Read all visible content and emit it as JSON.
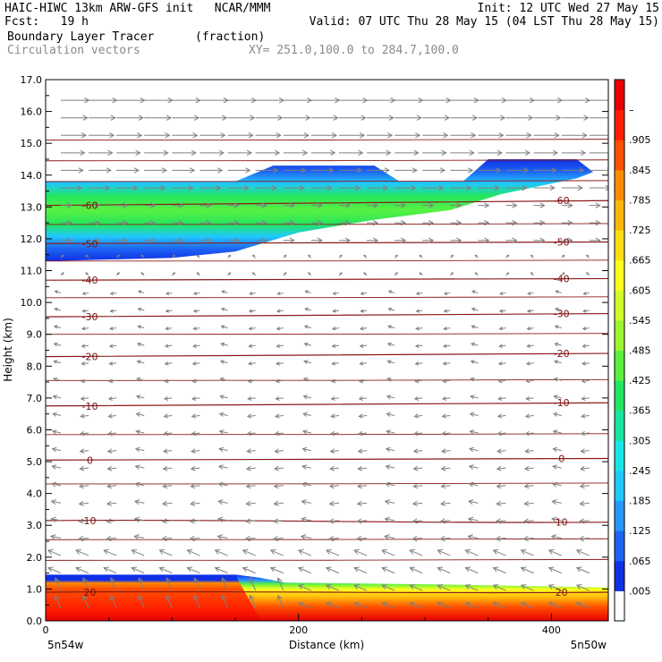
{
  "header": {
    "line1_left": "HAIC-HIWC 13km ARW-GFS init   NCAR/MMM",
    "line1_right": "Init: 12 UTC Wed 27 May 15",
    "line2_left": "Fcst:   19 h",
    "line2_right": "Valid: 07 UTC Thu 28 May 15 (04 LST Thu 28 May 15)",
    "line3_field": "Boundary Layer Tracer",
    "line3_units": "(fraction)",
    "line4_field": "Circulation vectors",
    "line4_xy": "XY= 251.0,100.0 to 284.7,100.0"
  },
  "colors": {
    "isotherm": "#8b1a1a",
    "vector": "#808080",
    "frame": "#000000"
  },
  "chart_data": {
    "type": "heatmap",
    "title": "Boundary Layer Tracer",
    "units": "(fraction)",
    "xlabel": "Distance (km)",
    "ylabel": "Height (km)",
    "xlim": [
      0,
      445
    ],
    "ylim": [
      0,
      17
    ],
    "x_ticks": [
      0,
      200,
      400
    ],
    "y_ticks": [
      "0.0",
      "1.0",
      "2.0",
      "3.0",
      "4.0",
      "5.0",
      "6.0",
      "7.0",
      "8.0",
      "9.0",
      "10.0",
      "11.0",
      "12.0",
      "13.0",
      "14.0",
      "15.0",
      "16.0",
      "17.0"
    ],
    "x_endpoint_labels": {
      "left": "5n54w",
      "right": "5n50w"
    },
    "colorbar": {
      "labels": [
        ".005",
        ".065",
        ".125",
        ".185",
        ".245",
        ".305",
        ".365",
        ".425",
        ".485",
        ".545",
        ".605",
        ".665",
        ".725",
        ".785",
        ".845",
        ".905",
        "–"
      ],
      "colors": [
        "#ffffff",
        "#1030e6",
        "#1e64f2",
        "#2896ff",
        "#20c8ff",
        "#18e6e6",
        "#18e6a0",
        "#22e660",
        "#5af040",
        "#9cf530",
        "#d2fa28",
        "#ffff1e",
        "#ffdc14",
        "#ffb40a",
        "#ff8c00",
        "#ff5000",
        "#ff1e00",
        "#e60000"
      ]
    },
    "isotherms": [
      {
        "label": "20",
        "left_z": 0.9,
        "right_z": 0.9
      },
      {
        "label": "10",
        "left_z": 3.15,
        "right_z": 3.1
      },
      {
        "label": "0",
        "left_z": 5.05,
        "right_z": 5.1
      },
      {
        "label": "-10",
        "left_z": 6.75,
        "right_z": 6.85
      },
      {
        "label": "-20",
        "left_z": 8.3,
        "right_z": 8.4
      },
      {
        "label": "-30",
        "left_z": 9.55,
        "right_z": 9.65
      },
      {
        "label": "-40",
        "left_z": 10.7,
        "right_z": 10.75
      },
      {
        "label": "-50",
        "left_z": 11.85,
        "right_z": 11.9
      },
      {
        "label": "-60",
        "left_z": 13.05,
        "right_z": 13.2
      }
    ],
    "upper_tracer_layer": {
      "description": "elevated plume",
      "top_km": [
        [
          0,
          13.8
        ],
        [
          150,
          13.8
        ],
        [
          180,
          14.3
        ],
        [
          260,
          14.3
        ],
        [
          280,
          13.8
        ],
        [
          330,
          13.8
        ],
        [
          350,
          14.5
        ],
        [
          420,
          14.5
        ],
        [
          433,
          14.1
        ]
      ],
      "bottom_km": [
        [
          0,
          11.3
        ],
        [
          100,
          11.4
        ],
        [
          150,
          11.6
        ],
        [
          200,
          12.2
        ],
        [
          260,
          12.6
        ],
        [
          320,
          12.9
        ],
        [
          360,
          13.4
        ],
        [
          420,
          13.9
        ],
        [
          433,
          14.1
        ]
      ],
      "core_value": 0.35
    },
    "surface_tracer_layer": {
      "top_km": [
        [
          0,
          1.45
        ],
        [
          150,
          1.45
        ],
        [
          170,
          1.35
        ],
        [
          190,
          1.2
        ],
        [
          300,
          1.15
        ],
        [
          445,
          1.05
        ]
      ],
      "core_value": 0.95
    }
  }
}
